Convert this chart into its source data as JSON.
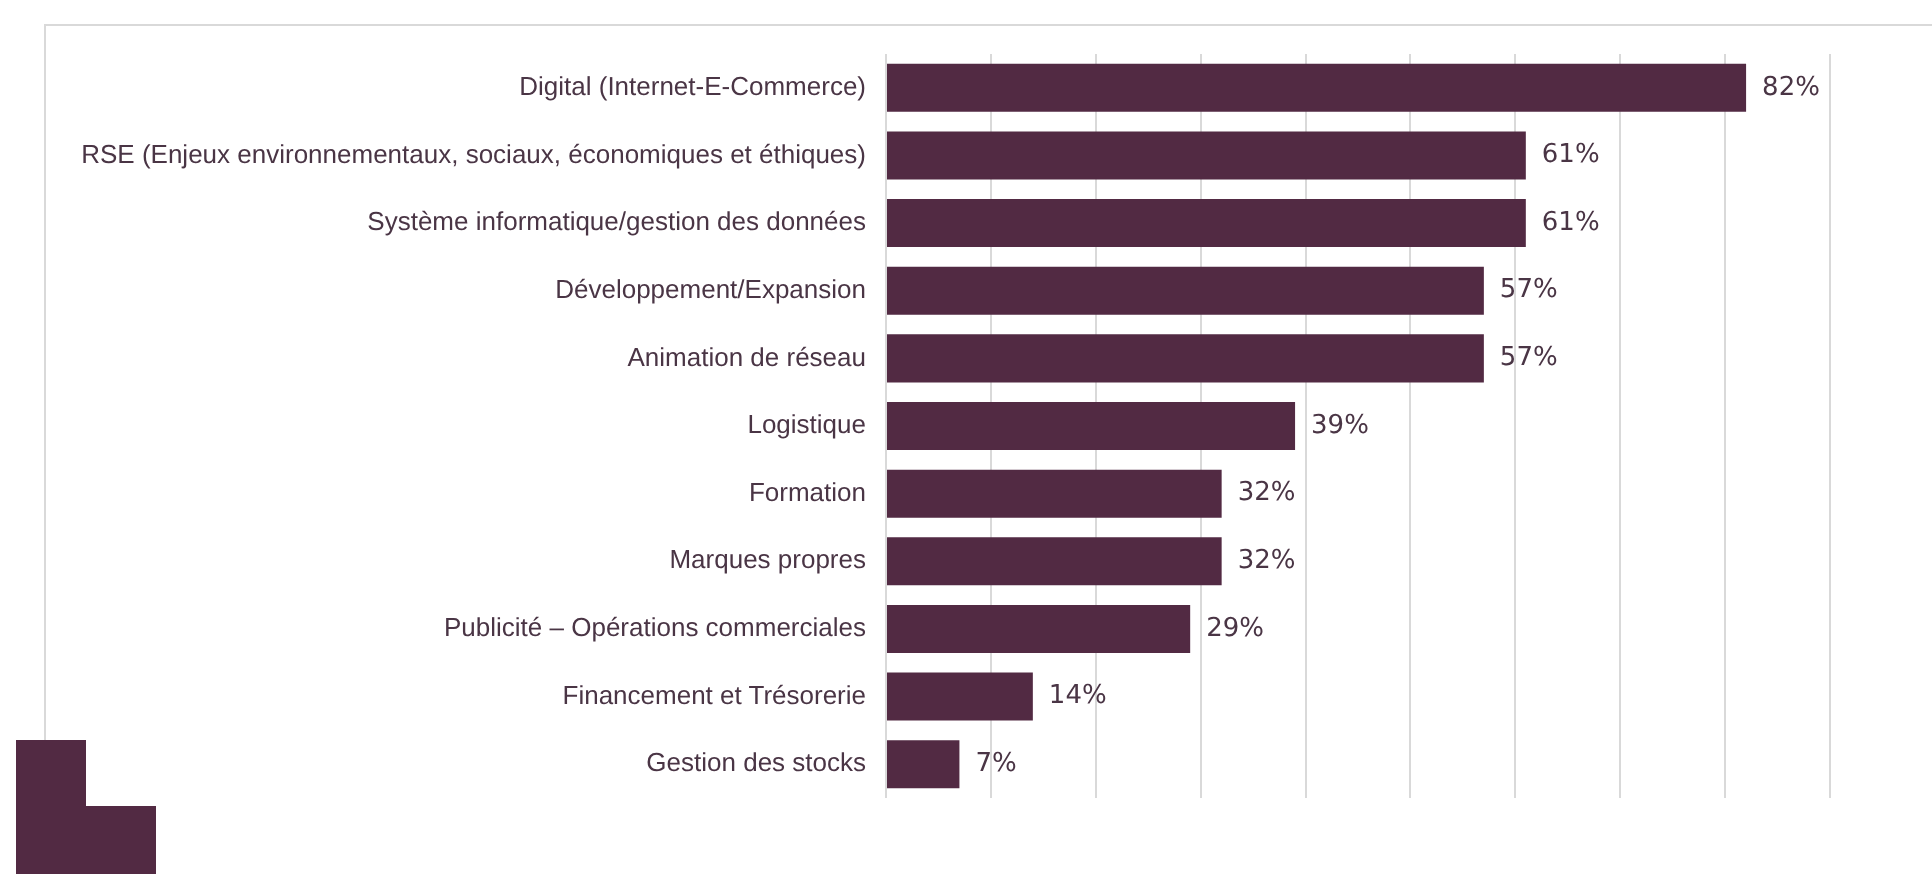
{
  "chart_data": {
    "type": "bar",
    "orientation": "horizontal",
    "categories": [
      "Digital (Internet-E-Commerce)",
      "RSE (Enjeux environnementaux, sociaux, économiques et éthiques)",
      "Système informatique/gestion des données",
      "Développement/Expansion",
      "Animation de réseau",
      "Logistique",
      "Formation",
      "Marques propres",
      "Publicité – Opérations commerciales",
      "Financement et Trésorerie",
      "Gestion des stocks"
    ],
    "values": [
      82,
      61,
      61,
      57,
      57,
      39,
      32,
      32,
      29,
      14,
      7
    ],
    "value_labels": [
      "82%",
      "61%",
      "61%",
      "57%",
      "57%",
      "39%",
      "32%",
      "32%",
      "29%",
      "14%",
      "7%"
    ],
    "color": "#522a43",
    "xlim": [
      0,
      90
    ],
    "xticks": [
      {
        "value": 0,
        "label": null
      },
      {
        "value": 10,
        "label": null
      },
      {
        "value": 20,
        "label": null
      },
      {
        "value": 30,
        "label": null
      },
      {
        "value": 40,
        "label": null
      },
      {
        "value": 50,
        "label": null
      },
      {
        "value": 60,
        "label": null
      },
      {
        "value": 70,
        "label": null
      },
      {
        "value": 80,
        "label": null
      },
      {
        "value": 90,
        "label": null
      }
    ],
    "tick_labels": "y",
    "grid": "x",
    "legend": false
  }
}
